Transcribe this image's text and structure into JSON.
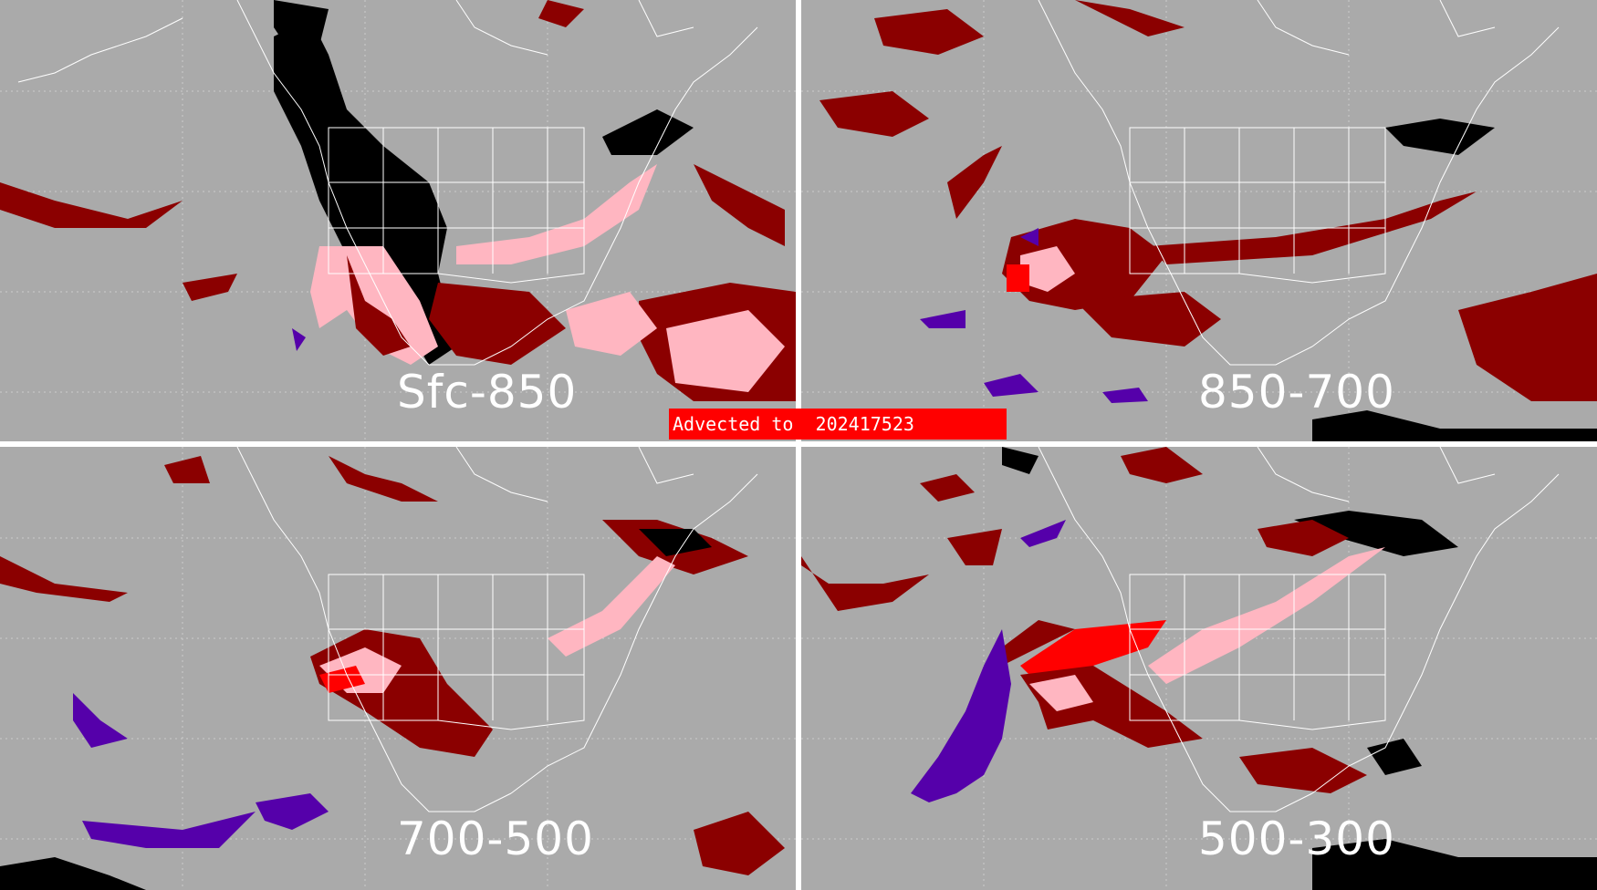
{
  "panels": [
    {
      "id": "sfc-850",
      "label": "Sfc-850"
    },
    {
      "id": "850-700",
      "label": "850-700"
    },
    {
      "id": "700-500",
      "label": "700-500"
    },
    {
      "id": "500-300",
      "label": "500-300"
    }
  ],
  "banner": {
    "text": "Advected to  202417523"
  },
  "colors": {
    "background": "#aaaaaa",
    "coastline": "#ffffff",
    "dark_red": "#8b0000",
    "pink": "#ffb6c1",
    "red": "#ff0000",
    "black": "#000000",
    "purple": "#5500aa"
  }
}
